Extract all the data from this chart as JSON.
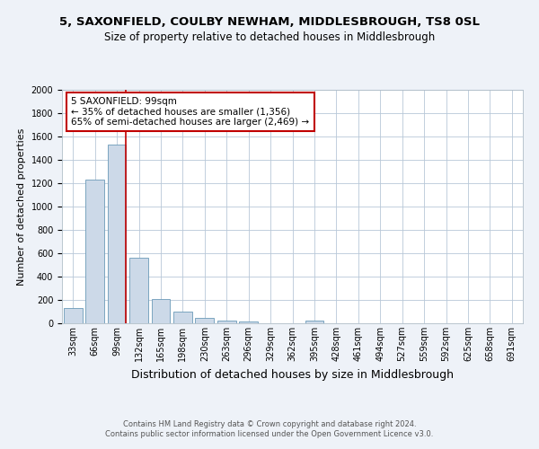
{
  "title1": "5, SAXONFIELD, COULBY NEWHAM, MIDDLESBROUGH, TS8 0SL",
  "title2": "Size of property relative to detached houses in Middlesbrough",
  "xlabel": "Distribution of detached houses by size in Middlesbrough",
  "ylabel": "Number of detached properties",
  "categories": [
    "33sqm",
    "66sqm",
    "99sqm",
    "132sqm",
    "165sqm",
    "198sqm",
    "230sqm",
    "263sqm",
    "296sqm",
    "329sqm",
    "362sqm",
    "395sqm",
    "428sqm",
    "461sqm",
    "494sqm",
    "527sqm",
    "559sqm",
    "592sqm",
    "625sqm",
    "658sqm",
    "691sqm"
  ],
  "values": [
    130,
    1230,
    1530,
    560,
    210,
    100,
    50,
    20,
    15,
    0,
    0,
    20,
    0,
    0,
    0,
    0,
    0,
    0,
    0,
    0,
    0
  ],
  "bar_color": "#ccd9e8",
  "bar_edge_color": "#6a9ab8",
  "highlight_index": 2,
  "highlight_line_color": "#c00000",
  "annotation_text": "5 SAXONFIELD: 99sqm\n← 35% of detached houses are smaller (1,356)\n65% of semi-detached houses are larger (2,469) →",
  "annotation_box_color": "#ffffff",
  "annotation_box_edge_color": "#c00000",
  "footer_text": "Contains HM Land Registry data © Crown copyright and database right 2024.\nContains public sector information licensed under the Open Government Licence v3.0.",
  "ylim": [
    0,
    2000
  ],
  "background_color": "#eef2f8",
  "plot_bg_color": "#ffffff",
  "title1_fontsize": 9.5,
  "title2_fontsize": 8.5,
  "ylabel_fontsize": 8,
  "xlabel_fontsize": 9,
  "tick_fontsize": 7,
  "footer_fontsize": 6,
  "annotation_fontsize": 7.5
}
